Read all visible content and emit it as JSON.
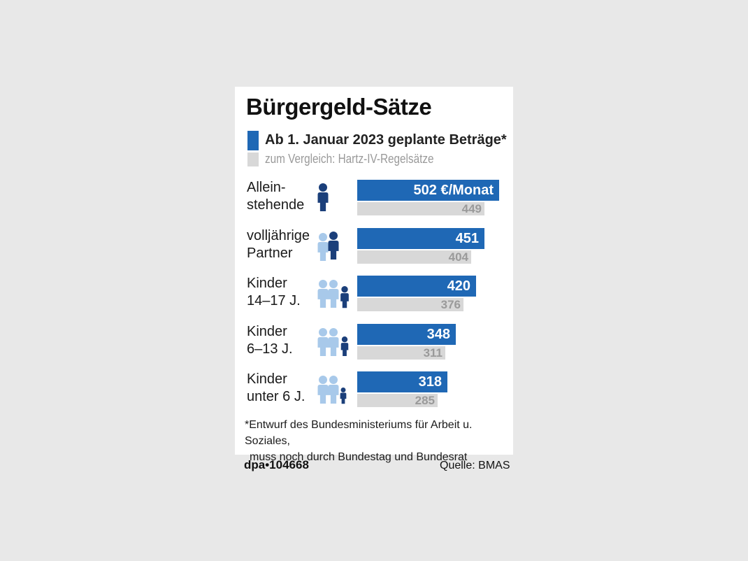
{
  "chart_data": {
    "type": "bar",
    "orientation": "horizontal",
    "title": "Bürgergeld-Sätze",
    "legend": {
      "new": "Ab 1. Januar 2023 geplante Beträge*",
      "old": "zum Vergleich: Hartz-IV-Regelsätze"
    },
    "categories": [
      {
        "line1": "Allein-",
        "line2": "stehende",
        "icon": "single-adult-icon"
      },
      {
        "line1": "volljährige",
        "line2": "Partner",
        "icon": "adult-partner-icon"
      },
      {
        "line1": "Kinder",
        "line2": "14–17 J.",
        "icon": "teen-child-icon"
      },
      {
        "line1": "Kinder",
        "line2": "6–13 J.",
        "icon": "school-child-icon"
      },
      {
        "line1": "Kinder",
        "line2": "unter 6 J.",
        "icon": "young-child-icon"
      }
    ],
    "series": [
      {
        "name": "Ab 1. Januar 2023 geplante Beträge*",
        "values": [
          502,
          451,
          420,
          348,
          318
        ],
        "labels": [
          "502 €/Monat",
          "451",
          "420",
          "348",
          "318"
        ],
        "color": "#1f68b5"
      },
      {
        "name": "zum Vergleich: Hartz-IV-Regelsätze",
        "values": [
          449,
          404,
          376,
          311,
          285
        ],
        "labels": [
          "449",
          "404",
          "376",
          "311",
          "285"
        ],
        "color": "#d8d8d8"
      }
    ],
    "footnote": {
      "line1": "*Entwurf des Bundesministeriums für Arbeit u. Soziales,",
      "line2": "muss noch durch Bundestag und Bundesrat"
    }
  },
  "credit": "dpa•104668",
  "source": "Quelle: BMAS",
  "colors": {
    "highlight_person": "#1b3f7a",
    "other_person": "#a8c9ea"
  }
}
